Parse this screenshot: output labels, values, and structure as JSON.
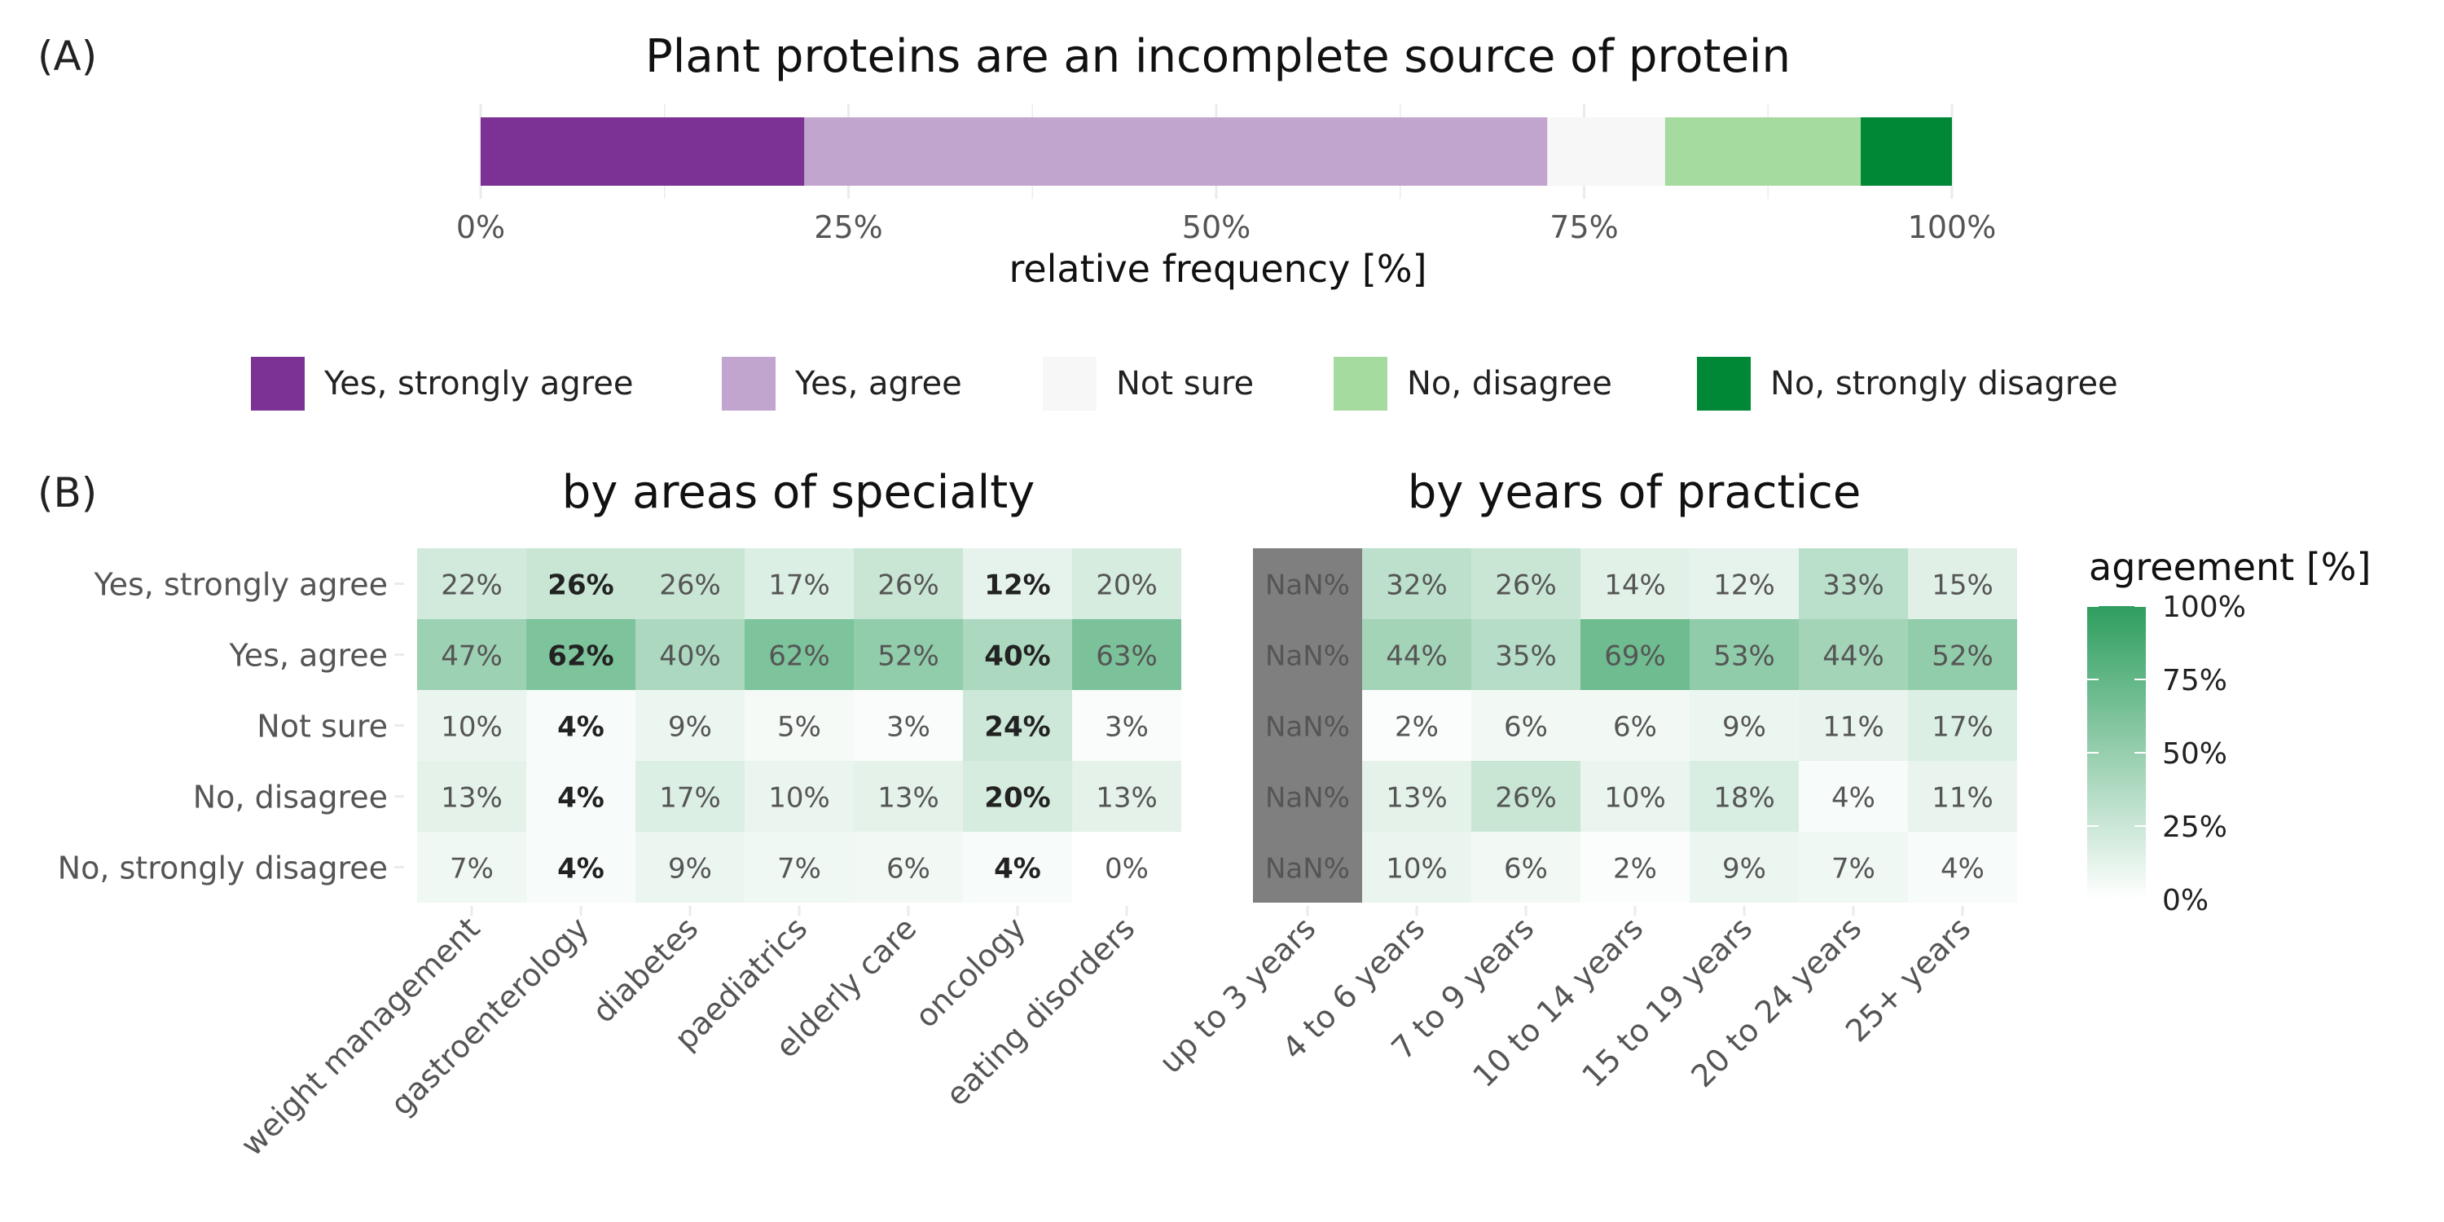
{
  "panel_a": {
    "tag": "(A)",
    "chart_data": {
      "type": "bar",
      "orientation": "horizontal",
      "stacked": true,
      "title": "Plant proteins are an incomplete source of protein",
      "xlabel": "relative frequency [%]",
      "xlim": [
        0,
        100
      ],
      "xticks": [
        "0%",
        "25%",
        "50%",
        "75%",
        "100%"
      ],
      "grid": true,
      "series": [
        {
          "name": "Yes, strongly agree",
          "value": 22,
          "color": "#7b3294"
        },
        {
          "name": "Yes, agree",
          "value": 50.5,
          "color": "#c2a5cf"
        },
        {
          "name": "Not sure",
          "value": 8,
          "color": "#f7f7f7"
        },
        {
          "name": "No, disagree",
          "value": 13.3,
          "color": "#a6dba0"
        },
        {
          "name": "No, strongly disagree",
          "value": 6.2,
          "color": "#008837"
        }
      ]
    }
  },
  "legend": {
    "items": [
      "Yes, strongly agree",
      "Yes, agree",
      "Not sure",
      "No, disagree",
      "No, strongly disagree"
    ],
    "colors": [
      "#7b3294",
      "#c2a5cf",
      "#f7f7f7",
      "#a6dba0",
      "#008837"
    ]
  },
  "panel_b": {
    "tag": "(B)",
    "rows": [
      "Yes, strongly agree",
      "Yes, agree",
      "Not sure",
      "No, disagree",
      "No, strongly disagree"
    ],
    "colorbar": {
      "title": "agreement [%]",
      "ticks": [
        "100%",
        "75%",
        "50%",
        "25%",
        "0%"
      ],
      "low_color": "#ffffff",
      "high_color": "#2e9e5e",
      "na_color": "#7f7f7f"
    },
    "chart_data": [
      {
        "type": "heatmap",
        "title": "by areas of specialty",
        "columns": [
          "weight management",
          "gastroenterology",
          "diabetes",
          "paediatrics",
          "elderly care",
          "oncology",
          "eating disorders"
        ],
        "values": [
          [
            22,
            26,
            26,
            17,
            26,
            12,
            20
          ],
          [
            47,
            62,
            40,
            62,
            52,
            40,
            63
          ],
          [
            10,
            4,
            9,
            5,
            3,
            24,
            3
          ],
          [
            13,
            4,
            17,
            10,
            13,
            20,
            13
          ],
          [
            7,
            4,
            9,
            7,
            6,
            4,
            0
          ]
        ],
        "labels": [
          [
            "22%",
            "26%",
            "26%",
            "17%",
            "26%",
            "12%",
            "20%"
          ],
          [
            "47%",
            "62%",
            "40%",
            "62%",
            "52%",
            "40%",
            "63%"
          ],
          [
            "10%",
            "4%",
            "9%",
            "5%",
            "3%",
            "24%",
            "3%"
          ],
          [
            "13%",
            "4%",
            "17%",
            "10%",
            "13%",
            "20%",
            "13%"
          ],
          [
            "7%",
            "4%",
            "9%",
            "7%",
            "6%",
            "4%",
            "0%"
          ]
        ],
        "bold_columns": [
          1,
          5
        ]
      },
      {
        "type": "heatmap",
        "title": "by years of practice",
        "columns": [
          "up to 3 years",
          "4 to 6 years",
          "7 to 9 years",
          "10 to 14 years",
          "15 to 19 years",
          "20 to 24 years",
          "25+ years"
        ],
        "values": [
          [
            null,
            32,
            26,
            14,
            12,
            33,
            15
          ],
          [
            null,
            44,
            35,
            69,
            53,
            44,
            52
          ],
          [
            null,
            2,
            6,
            6,
            9,
            11,
            17
          ],
          [
            null,
            13,
            26,
            10,
            18,
            4,
            11
          ],
          [
            null,
            10,
            6,
            2,
            9,
            7,
            4
          ]
        ],
        "labels": [
          [
            "NaN%",
            "32%",
            "26%",
            "14%",
            "12%",
            "33%",
            "15%"
          ],
          [
            "NaN%",
            "44%",
            "35%",
            "69%",
            "53%",
            "44%",
            "52%"
          ],
          [
            "NaN%",
            "2%",
            "6%",
            "6%",
            "9%",
            "11%",
            "17%"
          ],
          [
            "NaN%",
            "13%",
            "26%",
            "10%",
            "18%",
            "4%",
            "11%"
          ],
          [
            "NaN%",
            "10%",
            "6%",
            "2%",
            "9%",
            "7%",
            "4%"
          ]
        ],
        "bold_columns": []
      }
    ]
  }
}
